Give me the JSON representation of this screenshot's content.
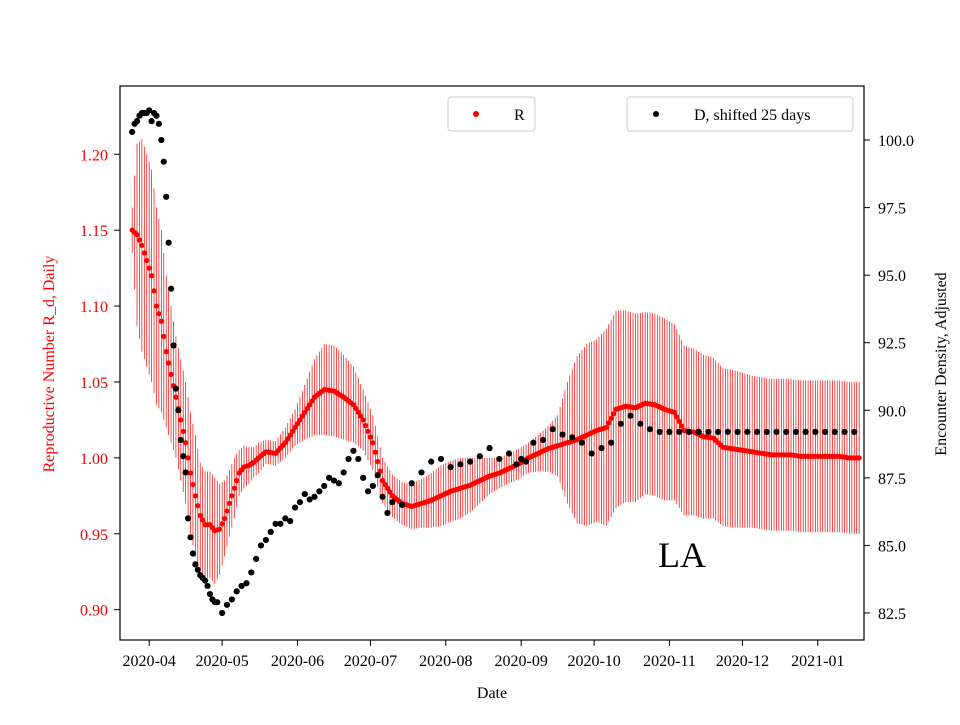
{
  "chart_data": {
    "type": "scatter",
    "annotation": "LA",
    "xlabel": "Date",
    "ylabel_left": "Reproductive Number R_d, Daily",
    "ylabel_right": "Encounter Density, Adjusted",
    "x_ticks": [
      "2020-04",
      "2020-05",
      "2020-06",
      "2020-07",
      "2020-08",
      "2020-09",
      "2020-10",
      "2020-11",
      "2020-12",
      "2021-01"
    ],
    "y_left_ticks": [
      "0.90",
      "0.95",
      "1.00",
      "1.05",
      "1.10",
      "1.15",
      "1.20"
    ],
    "y_right_ticks": [
      "82.5",
      "85.0",
      "87.5",
      "90.0",
      "92.5",
      "95.0",
      "97.5",
      "100.0"
    ],
    "xlim_days": [
      -12,
      294
    ],
    "y_left_range": [
      0.88,
      1.245
    ],
    "y_right_range": [
      81.5,
      102.0
    ],
    "left_axis_color": "#ff0000",
    "right_axis_color": "#000000",
    "legend_left_label": "R",
    "legend_right_label": "D, shifted 25 days",
    "series_R": {
      "name": "R",
      "color": "#ff0000",
      "x_days": [
        -7,
        -5,
        -3,
        -1,
        1,
        3,
        5,
        7,
        9,
        11,
        13,
        15,
        17,
        19,
        21,
        23,
        25,
        27,
        29,
        31,
        33,
        35,
        37,
        39,
        41,
        43,
        45,
        48,
        52,
        56,
        60,
        64,
        68,
        72,
        76,
        80,
        84,
        88,
        92,
        96,
        100,
        104,
        108,
        112,
        116,
        120,
        124,
        128,
        132,
        136,
        140,
        144,
        148,
        152,
        156,
        160,
        164,
        168,
        172,
        176,
        180,
        184,
        188,
        192,
        196,
        200,
        204,
        208,
        212,
        216,
        220,
        224,
        228,
        232,
        236,
        240,
        244,
        248,
        252,
        256,
        260,
        264,
        268,
        272,
        276,
        280,
        284,
        288,
        292
      ],
      "y": [
        1.15,
        1.147,
        1.14,
        1.13,
        1.12,
        1.1,
        1.09,
        1.07,
        1.055,
        1.04,
        1.025,
        1.01,
        0.99,
        0.975,
        0.962,
        0.956,
        0.956,
        0.952,
        0.953,
        0.96,
        0.97,
        0.98,
        0.99,
        0.994,
        0.995,
        0.997,
        1.0,
        1.004,
        1.003,
        1.01,
        1.02,
        1.03,
        1.04,
        1.045,
        1.044,
        1.04,
        1.035,
        1.025,
        1.01,
        0.985,
        0.975,
        0.97,
        0.968,
        0.97,
        0.972,
        0.975,
        0.978,
        0.98,
        0.982,
        0.985,
        0.988,
        0.99,
        0.993,
        0.996,
        1.0,
        1.003,
        1.006,
        1.008,
        1.01,
        1.012,
        1.015,
        1.018,
        1.02,
        1.032,
        1.034,
        1.033,
        1.036,
        1.035,
        1.032,
        1.03,
        1.018,
        1.017,
        1.014,
        1.013,
        1.007,
        1.006,
        1.005,
        1.004,
        1.003,
        1.002,
        1.002,
        1.002,
        1.001,
        1.001,
        1.001,
        1.001,
        1.001,
        1.0,
        1.0
      ],
      "err": [
        0.015,
        0.06,
        0.07,
        0.07,
        0.07,
        0.065,
        0.06,
        0.05,
        0.045,
        0.04,
        0.04,
        0.04,
        0.04,
        0.04,
        0.035,
        0.035,
        0.035,
        0.035,
        0.03,
        0.025,
        0.022,
        0.02,
        0.015,
        0.014,
        0.012,
        0.01,
        0.01,
        0.008,
        0.008,
        0.01,
        0.012,
        0.018,
        0.025,
        0.03,
        0.03,
        0.028,
        0.025,
        0.02,
        0.018,
        0.015,
        0.014,
        0.014,
        0.015,
        0.016,
        0.018,
        0.02,
        0.02,
        0.02,
        0.018,
        0.015,
        0.012,
        0.01,
        0.01,
        0.01,
        0.01,
        0.012,
        0.015,
        0.02,
        0.04,
        0.055,
        0.06,
        0.06,
        0.065,
        0.065,
        0.063,
        0.062,
        0.06,
        0.06,
        0.06,
        0.058,
        0.056,
        0.055,
        0.054,
        0.053,
        0.052,
        0.052,
        0.051,
        0.05,
        0.05,
        0.05,
        0.05,
        0.05,
        0.05,
        0.05,
        0.05,
        0.05,
        0.05,
        0.05,
        0.05
      ]
    },
    "series_D": {
      "name": "D, shifted 25 days",
      "color": "#000000",
      "x_days": [
        -7,
        -6,
        -5,
        -4,
        -3,
        -2,
        -1,
        0,
        1,
        2,
        3,
        4,
        5,
        6,
        7,
        8,
        9,
        10,
        11,
        12,
        13,
        14,
        15,
        16,
        17,
        18,
        19,
        20,
        21,
        22,
        23,
        24,
        25,
        26,
        27,
        28,
        30,
        32,
        34,
        36,
        38,
        40,
        42,
        44,
        46,
        48,
        50,
        52,
        54,
        56,
        58,
        60,
        62,
        64,
        66,
        68,
        70,
        72,
        74,
        76,
        78,
        80,
        82,
        84,
        86,
        88,
        90,
        92,
        94,
        96,
        98,
        100,
        104,
        108,
        112,
        116,
        120,
        124,
        128,
        132,
        136,
        140,
        144,
        148,
        151,
        153,
        155,
        158,
        162,
        166,
        170,
        174,
        178,
        182,
        186,
        190,
        194,
        198,
        202,
        206,
        210,
        214,
        218,
        222,
        226,
        230,
        234,
        238,
        242,
        246,
        250,
        254,
        258,
        262,
        266,
        270,
        274,
        278,
        282,
        286,
        290
      ],
      "y": [
        100.3,
        100.6,
        100.7,
        100.9,
        101.0,
        101.0,
        101.0,
        101.1,
        100.7,
        101.0,
        100.9,
        100.6,
        100.0,
        99.2,
        97.9,
        96.2,
        94.5,
        92.4,
        90.8,
        90.0,
        88.9,
        88.3,
        87.7,
        86.0,
        85.3,
        84.7,
        84.3,
        84.1,
        83.9,
        83.8,
        83.7,
        83.5,
        83.2,
        83.0,
        82.9,
        82.9,
        82.5,
        82.8,
        83.0,
        83.3,
        83.5,
        83.6,
        84.0,
        84.5,
        85.0,
        85.2,
        85.5,
        85.8,
        85.8,
        86.0,
        85.9,
        86.4,
        86.6,
        86.9,
        86.7,
        86.8,
        87.0,
        87.2,
        87.5,
        87.4,
        87.3,
        87.7,
        88.2,
        88.5,
        88.2,
        87.5,
        87.0,
        87.2,
        87.6,
        86.8,
        86.2,
        86.6,
        86.5,
        87.3,
        87.7,
        88.1,
        88.2,
        87.9,
        88.0,
        88.1,
        88.3,
        88.6,
        88.2,
        88.4,
        88.0,
        88.2,
        88.1,
        88.8,
        88.9,
        89.3,
        89.1,
        89.0,
        88.8,
        88.4,
        88.6,
        88.8,
        89.5,
        89.8,
        89.5,
        89.3,
        89.2,
        89.2,
        89.2,
        89.2,
        89.2,
        89.2,
        89.2,
        89.2,
        89.2,
        89.2,
        89.2,
        89.2,
        89.2,
        89.2,
        89.2,
        89.2,
        89.2,
        89.2,
        89.2,
        89.2,
        89.2
      ]
    }
  }
}
